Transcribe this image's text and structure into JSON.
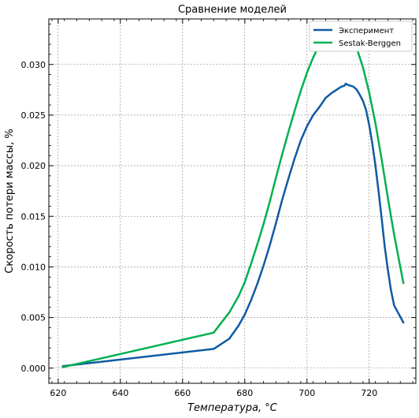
{
  "chart_data": {
    "type": "line",
    "title": "Сравнение моделей",
    "xlabel": "Температура, °C",
    "ylabel": "Скорость потери массы, %",
    "xlim": [
      617,
      735
    ],
    "ylim": [
      -0.0015,
      0.0345
    ],
    "xticks": [
      620,
      640,
      660,
      680,
      700,
      720
    ],
    "xtick_labels": [
      "620",
      "640",
      "660",
      "680",
      "700",
      "720"
    ],
    "yticks": [
      0.0,
      0.005,
      0.01,
      0.015,
      0.02,
      0.025,
      0.03
    ],
    "ytick_labels": [
      "0.000",
      "0.005",
      "0.010",
      "0.015",
      "0.020",
      "0.025",
      "0.030"
    ],
    "grid": true,
    "legend_position": "top-right",
    "series": [
      {
        "name": "Эксперимент",
        "color": "#0f5aa3",
        "x": [
          621.5,
          670,
          675,
          678,
          680,
          682,
          684,
          686,
          688,
          690,
          692,
          694,
          696,
          698,
          700,
          702,
          704,
          706,
          708,
          710,
          711,
          712,
          712.5,
          713,
          714,
          715,
          716,
          717,
          718,
          719,
          720,
          721,
          722,
          723,
          724,
          725,
          726,
          727,
          728,
          731
        ],
        "y": [
          0.0002,
          0.0019,
          0.0029,
          0.0042,
          0.0053,
          0.0067,
          0.0083,
          0.0101,
          0.0121,
          0.0143,
          0.0166,
          0.0187,
          0.0207,
          0.0225,
          0.0239,
          0.025,
          0.0258,
          0.0267,
          0.0272,
          0.0276,
          0.0278,
          0.0279,
          0.0281,
          0.028,
          0.0279,
          0.0278,
          0.0275,
          0.027,
          0.0264,
          0.0255,
          0.024,
          0.0222,
          0.02,
          0.0175,
          0.0148,
          0.012,
          0.0097,
          0.0077,
          0.0062,
          0.0045
        ]
      },
      {
        "name": "Sestak-Berggen",
        "color": "#00b050",
        "x": [
          621.5,
          670,
          675,
          678,
          680,
          682,
          684,
          686,
          688,
          690,
          692,
          694,
          696,
          698,
          700,
          702,
          704,
          706,
          708,
          710,
          712,
          714,
          716,
          718,
          720,
          722,
          724,
          726,
          728,
          731
        ],
        "y": [
          0.0001,
          0.0035,
          0.0055,
          0.0071,
          0.0085,
          0.0103,
          0.0122,
          0.0142,
          0.0164,
          0.0188,
          0.0211,
          0.0233,
          0.0254,
          0.0274,
          0.0292,
          0.0307,
          0.032,
          0.033,
          0.0335,
          0.0336,
          0.0335,
          0.0328,
          0.0316,
          0.0297,
          0.0272,
          0.0242,
          0.0206,
          0.0168,
          0.0132,
          0.0084
        ]
      }
    ]
  }
}
